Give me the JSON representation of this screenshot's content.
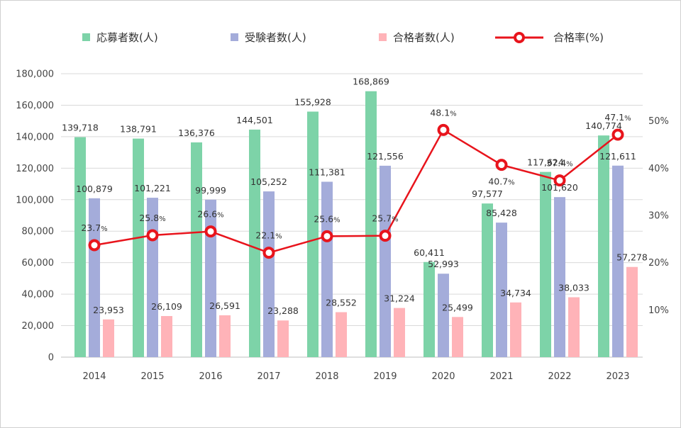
{
  "colors": {
    "applicants": "#7dd3a8",
    "examinees": "#a4acda",
    "passers": "#ffb3b8",
    "rate": "#e8141c",
    "grid": "#d9d9d9",
    "axis_text": "#444444"
  },
  "chart_data": {
    "type": "bar",
    "combo": "bar+line",
    "categories": [
      "2014",
      "2015",
      "2016",
      "2017",
      "2018",
      "2019",
      "2020",
      "2021",
      "2022",
      "2023"
    ],
    "series": [
      {
        "name": "応募者数(人)",
        "type": "bar",
        "axis": "left",
        "values": [
          139718,
          138791,
          136376,
          144501,
          155928,
          168869,
          60411,
          97577,
          117624,
          140774
        ],
        "labels": [
          "139,718",
          "138,791",
          "136,376",
          "144,501",
          "155,928",
          "168,869",
          "60,411",
          "97,577",
          "117,624",
          "140,774"
        ]
      },
      {
        "name": "受験者数(人)",
        "type": "bar",
        "axis": "left",
        "values": [
          100879,
          101221,
          99999,
          105252,
          111381,
          121556,
          52993,
          85428,
          101620,
          121611
        ],
        "labels": [
          "100,879",
          "101,221",
          "99,999",
          "105,252",
          "111,381",
          "121,556",
          "52,993",
          "85,428",
          "101,620",
          "121,611"
        ]
      },
      {
        "name": "合格者数(人)",
        "type": "bar",
        "axis": "left",
        "values": [
          23953,
          26109,
          26591,
          23288,
          28552,
          31224,
          25499,
          34734,
          38033,
          57278
        ],
        "labels": [
          "23,953",
          "26,109",
          "26,591",
          "23,288",
          "28,552",
          "31,224",
          "25,499",
          "34,734",
          "38,033",
          "57,278"
        ]
      },
      {
        "name": "合格率(%)",
        "type": "line",
        "axis": "right",
        "values": [
          23.7,
          25.8,
          26.6,
          22.1,
          25.6,
          25.7,
          48.1,
          40.7,
          37.4,
          47.1
        ],
        "labels": [
          "23.7",
          "25.8",
          "26.6",
          "22.1",
          "25.6",
          "25.7",
          "48.1",
          "40.7",
          "37.4",
          "47.1"
        ]
      }
    ],
    "y_left": {
      "ylim": [
        0,
        180000
      ],
      "ticks": [
        "0",
        "20,000",
        "40,000",
        "60,000",
        "80,000",
        "100,000",
        "120,000",
        "140,000",
        "160,000",
        "180,000"
      ]
    },
    "y_right": {
      "ylim": [
        0,
        60
      ],
      "ticks": [
        "10%",
        "20%",
        "30%",
        "40%",
        "50%"
      ]
    },
    "grid": true,
    "legend_position": "top"
  }
}
